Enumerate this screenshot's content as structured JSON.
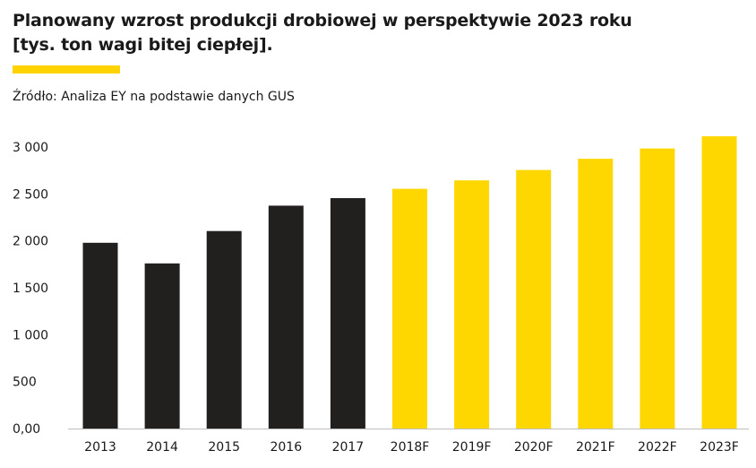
{
  "title_lines": [
    "Planowany wzrost produkcji drobiowej w perspektywie 2023 roku",
    "[tys. ton wagi bitej ciepłej]."
  ],
  "source": "Źródło: Analiza EY na podstawie danych GUS",
  "colors": {
    "actual": "#221f1f",
    "forecast": "#ffd700",
    "accent": "#ffd200",
    "axis": "#bdbdbd"
  },
  "chart_data": {
    "type": "bar",
    "title": "Planowany wzrost produkcji drobiowej w perspektywie 2023 roku [tys. ton wagi bitej ciepłej].",
    "categories": [
      "2013",
      "2014",
      "2015",
      "2016",
      "2017",
      "2018F",
      "2019F",
      "2020F",
      "2021F",
      "2022F",
      "2023F"
    ],
    "values": [
      1980,
      1760,
      2105,
      2375,
      2455,
      2555,
      2645,
      2755,
      2875,
      2985,
      3115
    ],
    "forecast": [
      false,
      false,
      false,
      false,
      false,
      true,
      true,
      true,
      true,
      true,
      true
    ],
    "ylim": [
      0,
      3000
    ],
    "yticks": [
      0,
      500,
      1000,
      1500,
      2000,
      2500,
      3000
    ],
    "ytick_labels": [
      "0,00",
      "500",
      "1 000",
      "1 500",
      "2 000",
      "2 500",
      "3 000"
    ],
    "grid": false,
    "legend": "none",
    "xlabel": "",
    "ylabel": ""
  }
}
